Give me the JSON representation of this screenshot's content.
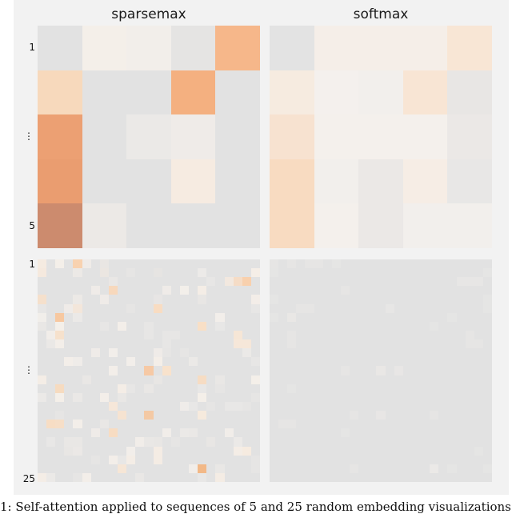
{
  "figure": {
    "titles": [
      "sparsemax",
      "softmax"
    ],
    "top_row_labels": {
      "first": "1",
      "middle": "⋮",
      "last": "5"
    },
    "bottom_row_labels": {
      "first": "1",
      "middle": "⋮",
      "last": "25"
    },
    "caption": "1: Self-attention applied to sequences of 5 and 25 random embedding visualizations of"
  },
  "colors": {
    "zero": "#e2e2e2",
    "figure_background": "#f2f2f2"
  },
  "chart_data": [
    {
      "type": "heatmap",
      "title": "sparsemax",
      "rows": 5,
      "cols": 5,
      "ytick_labels": [
        "1",
        "⋮",
        "5"
      ],
      "values": [
        [
          "#e2e2e2",
          "#f4efe9",
          "#f2eeea",
          "#e5e4e3",
          "#f6b78a"
        ],
        [
          "#f7d9bc",
          "#e2e2e2",
          "#e2e2e2",
          "#f4b080",
          "#e2e2e2"
        ],
        [
          "#eca073",
          "#e2e2e2",
          "#ebe9e7",
          "#efebe8",
          "#e2e2e2"
        ],
        [
          "#ea9d70",
          "#e2e2e2",
          "#e2e2e2",
          "#f6ebe1",
          "#e2e2e2"
        ],
        [
          "#cc8b6e",
          "#ece9e6",
          "#e2e2e2",
          "#e2e2e2",
          "#e2e2e2"
        ]
      ]
    },
    {
      "type": "heatmap",
      "title": "softmax",
      "rows": 5,
      "cols": 5,
      "values": [
        [
          "#e3e3e3",
          "#f5eee8",
          "#f5eee8",
          "#f5eee8",
          "#f8e6d5"
        ],
        [
          "#f6ebe0",
          "#f4f0ed",
          "#f2efec",
          "#f8e5d4",
          "#e8e6e4"
        ],
        [
          "#f7e2d0",
          "#f4f0ec",
          "#f4f0ec",
          "#f4f0ec",
          "#ebe8e6"
        ],
        [
          "#f8dbc1",
          "#f2efec",
          "#ebe8e6",
          "#f6ede5",
          "#e8e7e6"
        ],
        [
          "#f8dbc1",
          "#f4f0ec",
          "#ebe8e6",
          "#f2efec",
          "#f2efec"
        ]
      ]
    },
    {
      "type": "heatmap",
      "title": "sparsemax (25)",
      "rows": 25,
      "cols": 25,
      "ytick_labels": [
        "1",
        "⋮",
        "25"
      ],
      "background": "#e2e2e2",
      "nonzero_cells": [
        [
          0,
          0,
          "#f5ebe1"
        ],
        [
          0,
          2,
          "#f4efe9"
        ],
        [
          0,
          4,
          "#f8d2b0"
        ],
        [
          0,
          5,
          "#efebe8"
        ],
        [
          0,
          7,
          "#e9e6e3"
        ],
        [
          1,
          0,
          "#f5e9de"
        ],
        [
          1,
          4,
          "#ece9e6"
        ],
        [
          1,
          7,
          "#ebe6e1"
        ],
        [
          1,
          10,
          "#e6e5e4"
        ],
        [
          1,
          13,
          "#e6e4e2"
        ],
        [
          1,
          18,
          "#eceae8"
        ],
        [
          1,
          24,
          "#f5eee7"
        ],
        [
          2,
          8,
          "#e9e7e5"
        ],
        [
          2,
          19,
          "#e7e6e5"
        ],
        [
          2,
          21,
          "#f2e8df"
        ],
        [
          2,
          22,
          "#f5dcc6"
        ],
        [
          2,
          23,
          "#f8d0ad"
        ],
        [
          3,
          6,
          "#efebe8"
        ],
        [
          3,
          8,
          "#f7d8bc"
        ],
        [
          3,
          14,
          "#efebe8"
        ],
        [
          3,
          16,
          "#f3efea"
        ],
        [
          3,
          18,
          "#f4ede6"
        ],
        [
          4,
          0,
          "#f5e0cc"
        ],
        [
          4,
          4,
          "#ece9e6"
        ],
        [
          4,
          7,
          "#efebe8"
        ],
        [
          4,
          13,
          "#e7e5e4"
        ],
        [
          4,
          18,
          "#e8e6e4"
        ],
        [
          4,
          24,
          "#f3ede8"
        ],
        [
          5,
          0,
          "#e7e6e5"
        ],
        [
          5,
          3,
          "#efebe8"
        ],
        [
          5,
          4,
          "#f3e6da"
        ],
        [
          5,
          10,
          "#e6e5e4"
        ],
        [
          5,
          13,
          "#f8dcc2"
        ],
        [
          5,
          24,
          "#e7e6e5"
        ],
        [
          6,
          0,
          "#f1eeea"
        ],
        [
          6,
          2,
          "#f7c8a0"
        ],
        [
          6,
          4,
          "#ebe9e7"
        ],
        [
          6,
          20,
          "#f2eeea"
        ],
        [
          7,
          0,
          "#e9e7e5"
        ],
        [
          7,
          2,
          "#f4efe9"
        ],
        [
          7,
          7,
          "#e7e6e5"
        ],
        [
          7,
          9,
          "#f3eee9"
        ],
        [
          7,
          12,
          "#e7e6e5"
        ],
        [
          7,
          18,
          "#f8dfc6"
        ],
        [
          7,
          20,
          "#e8e7e6"
        ],
        [
          8,
          1,
          "#f1ede9"
        ],
        [
          8,
          2,
          "#f6e1cc"
        ],
        [
          8,
          12,
          "#e7e6e5"
        ],
        [
          8,
          14,
          "#e7e6e5"
        ],
        [
          8,
          15,
          "#e7e6e5"
        ],
        [
          8,
          22,
          "#f6e6d6"
        ],
        [
          9,
          1,
          "#eae8e6"
        ],
        [
          9,
          2,
          "#f3eee9"
        ],
        [
          9,
          14,
          "#e7e6e5"
        ],
        [
          9,
          22,
          "#f6e7d9"
        ],
        [
          9,
          23,
          "#f6e7d9"
        ],
        [
          10,
          6,
          "#efebe8"
        ],
        [
          10,
          8,
          "#f2eeea"
        ],
        [
          10,
          13,
          "#efebe8"
        ],
        [
          10,
          14,
          "#e6e5e4"
        ],
        [
          10,
          16,
          "#e6e5e4"
        ],
        [
          10,
          23,
          "#ebe9e7"
        ],
        [
          11,
          3,
          "#f3eee9"
        ],
        [
          11,
          4,
          "#efece9"
        ],
        [
          11,
          10,
          "#f2eeea"
        ],
        [
          11,
          13,
          "#f4eee8"
        ],
        [
          11,
          17,
          "#ebe9e7"
        ],
        [
          11,
          24,
          "#e7e6e5"
        ],
        [
          12,
          8,
          "#f3eee9"
        ],
        [
          12,
          12,
          "#f6c9a5"
        ],
        [
          12,
          14,
          "#f8e2cc"
        ],
        [
          13,
          0,
          "#f4ede6"
        ],
        [
          13,
          5,
          "#e9e7e5"
        ],
        [
          13,
          13,
          "#e8e6e4"
        ],
        [
          13,
          18,
          "#f6dcc3"
        ],
        [
          13,
          20,
          "#e9e7e5"
        ],
        [
          13,
          24,
          "#f4efe9"
        ],
        [
          14,
          2,
          "#f6dbc0"
        ],
        [
          14,
          9,
          "#f4ede6"
        ],
        [
          14,
          10,
          "#e7e6e5"
        ],
        [
          14,
          12,
          "#e9e7e5"
        ],
        [
          14,
          18,
          "#e8e7e6"
        ],
        [
          14,
          20,
          "#e6e5e4"
        ],
        [
          15,
          0,
          "#ebe9e7"
        ],
        [
          15,
          2,
          "#f4efe9"
        ],
        [
          15,
          4,
          "#eae8e6"
        ],
        [
          15,
          7,
          "#f3eee9"
        ],
        [
          15,
          9,
          "#e9e7e5"
        ],
        [
          15,
          18,
          "#f4efe9"
        ],
        [
          15,
          24,
          "#e6e5e4"
        ],
        [
          16,
          8,
          "#f6e7d9"
        ],
        [
          16,
          16,
          "#efece9"
        ],
        [
          16,
          17,
          "#e8e7e6"
        ],
        [
          16,
          19,
          "#e6e5e4"
        ],
        [
          16,
          21,
          "#e8e7e6"
        ],
        [
          16,
          22,
          "#e8e7e6"
        ],
        [
          16,
          23,
          "#e6e5e4"
        ],
        [
          17,
          2,
          "#e6e5e4"
        ],
        [
          17,
          9,
          "#f6e3d1"
        ],
        [
          17,
          12,
          "#f4c9a4"
        ],
        [
          17,
          18,
          "#f6eadd"
        ],
        [
          18,
          1,
          "#f7ddc4"
        ],
        [
          18,
          2,
          "#f6dec7"
        ],
        [
          18,
          4,
          "#f3eee9"
        ],
        [
          18,
          7,
          "#e9e7e5"
        ],
        [
          19,
          6,
          "#efebe8"
        ],
        [
          19,
          8,
          "#f7dcc2"
        ],
        [
          19,
          14,
          "#f1ede9"
        ],
        [
          19,
          16,
          "#ebe9e7"
        ],
        [
          19,
          17,
          "#eae8e6"
        ],
        [
          19,
          21,
          "#f1ede9"
        ],
        [
          20,
          1,
          "#e8e7e6"
        ],
        [
          20,
          3,
          "#e9e7e5"
        ],
        [
          20,
          4,
          "#e9e7e5"
        ],
        [
          20,
          11,
          "#f1ede9"
        ],
        [
          20,
          12,
          "#e9e7e5"
        ],
        [
          20,
          13,
          "#e8e6e4"
        ],
        [
          20,
          15,
          "#e6e5e4"
        ],
        [
          20,
          19,
          "#e8e6e4"
        ],
        [
          20,
          22,
          "#ebe9e7"
        ],
        [
          21,
          3,
          "#e8e6e4"
        ],
        [
          21,
          4,
          "#ebe8e6"
        ],
        [
          21,
          10,
          "#f2eeea"
        ],
        [
          21,
          13,
          "#f4ece4"
        ],
        [
          21,
          22,
          "#f4ede6"
        ],
        [
          21,
          23,
          "#f6ebe0"
        ],
        [
          22,
          6,
          "#e6e5e4"
        ],
        [
          22,
          8,
          "#f3eee9"
        ],
        [
          22,
          9,
          "#e8e7e6"
        ],
        [
          22,
          10,
          "#f4ede6"
        ],
        [
          22,
          13,
          "#f4ece4"
        ],
        [
          22,
          24,
          "#e6e5e4"
        ],
        [
          23,
          9,
          "#f6e6d6"
        ],
        [
          23,
          17,
          "#f1ede9"
        ],
        [
          23,
          18,
          "#f2b887"
        ],
        [
          23,
          20,
          "#e9e7e5"
        ],
        [
          23,
          24,
          "#e6e5e4"
        ],
        [
          24,
          0,
          "#f4ede6"
        ],
        [
          24,
          1,
          "#ebe9e7"
        ],
        [
          24,
          4,
          "#e6e5e4"
        ],
        [
          24,
          5,
          "#f3eee9"
        ],
        [
          24,
          11,
          "#e9e7e5"
        ],
        [
          24,
          18,
          "#e8e7e6"
        ],
        [
          24,
          20,
          "#f4ece4"
        ]
      ]
    },
    {
      "type": "heatmap",
      "title": "softmax (25)",
      "rows": 25,
      "cols": 25,
      "background": "#e2e2e2",
      "nonzero_cells": [
        [
          0,
          0,
          "#e6e5e4"
        ],
        [
          0,
          2,
          "#e6e5e4"
        ],
        [
          0,
          4,
          "#e6e5e4"
        ],
        [
          0,
          5,
          "#e6e5e4"
        ],
        [
          0,
          7,
          "#e5e5e4"
        ],
        [
          1,
          0,
          "#e5e5e4"
        ],
        [
          1,
          24,
          "#e5e5e4"
        ],
        [
          2,
          21,
          "#e7e6e5"
        ],
        [
          2,
          22,
          "#e7e6e5"
        ],
        [
          2,
          23,
          "#e7e6e5"
        ],
        [
          3,
          8,
          "#e6e5e4"
        ],
        [
          4,
          0,
          "#e5e5e4"
        ],
        [
          4,
          24,
          "#e5e5e4"
        ],
        [
          5,
          3,
          "#e6e5e4"
        ],
        [
          5,
          4,
          "#e6e5e4"
        ],
        [
          5,
          13,
          "#e7e6e5"
        ],
        [
          5,
          24,
          "#e5e5e4"
        ],
        [
          6,
          0,
          "#e5e5e4"
        ],
        [
          6,
          2,
          "#e9e7e5"
        ],
        [
          6,
          20,
          "#e5e5e4"
        ],
        [
          7,
          18,
          "#e5e5e4"
        ],
        [
          8,
          2,
          "#e6e5e4"
        ],
        [
          8,
          22,
          "#e6e5e4"
        ],
        [
          9,
          2,
          "#e6e5e4"
        ],
        [
          9,
          22,
          "#e6e5e4"
        ],
        [
          9,
          23,
          "#e6e5e4"
        ],
        [
          12,
          8,
          "#e6e5e4"
        ],
        [
          12,
          12,
          "#e9e7e5"
        ],
        [
          12,
          14,
          "#e8e6e5"
        ],
        [
          14,
          2,
          "#e5e5e4"
        ],
        [
          17,
          9,
          "#e6e5e4"
        ],
        [
          17,
          12,
          "#e8e6e5"
        ],
        [
          17,
          18,
          "#e6e5e4"
        ],
        [
          18,
          1,
          "#e6e5e4"
        ],
        [
          18,
          2,
          "#e6e5e4"
        ],
        [
          19,
          8,
          "#e5e5e4"
        ],
        [
          21,
          23,
          "#e5e5e4"
        ],
        [
          23,
          9,
          "#e6e5e4"
        ],
        [
          23,
          18,
          "#ebe9e7"
        ],
        [
          23,
          20,
          "#e5e5e4"
        ],
        [
          23,
          24,
          "#e5e5e4"
        ]
      ]
    }
  ]
}
